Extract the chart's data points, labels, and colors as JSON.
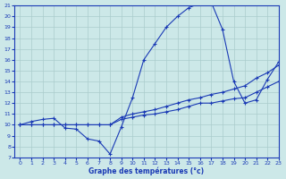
{
  "title": "Graphe des températures (°c)",
  "bg_color": "#cce8e8",
  "grid_color": "#aacccc",
  "line_color": "#1a3ab5",
  "xlim": [
    -0.5,
    23
  ],
  "ylim": [
    7,
    21
  ],
  "xticks": [
    0,
    1,
    2,
    3,
    4,
    5,
    6,
    7,
    8,
    9,
    10,
    11,
    12,
    13,
    14,
    15,
    16,
    17,
    18,
    19,
    20,
    21,
    22,
    23
  ],
  "yticks": [
    7,
    8,
    9,
    10,
    11,
    12,
    13,
    14,
    15,
    16,
    17,
    18,
    19,
    20,
    21
  ],
  "line1_x": [
    0,
    1,
    2,
    3,
    4,
    5,
    6,
    7,
    8,
    9,
    10,
    11,
    12,
    13,
    14,
    15,
    16,
    17,
    18,
    19,
    20,
    21,
    22,
    23
  ],
  "line1_y": [
    10,
    10.3,
    10.5,
    10.6,
    9.7,
    9.6,
    8.7,
    8.5,
    7.3,
    9.8,
    12.5,
    16,
    17.5,
    19,
    20,
    20.8,
    21.2,
    21.3,
    18.8,
    14.0,
    12.0,
    12.3,
    14.2,
    15.8
  ],
  "line2_x": [
    0,
    1,
    2,
    3,
    4,
    5,
    6,
    7,
    8,
    9,
    10,
    11,
    12,
    13,
    14,
    15,
    16,
    17,
    18,
    19,
    20,
    21,
    22,
    23
  ],
  "line2_y": [
    10,
    10,
    10,
    10,
    10,
    10,
    10,
    10,
    10,
    10.5,
    10.7,
    10.9,
    11.0,
    11.2,
    11.4,
    11.7,
    12.0,
    12.0,
    12.2,
    12.4,
    12.5,
    13.0,
    13.5,
    14.0
  ],
  "line3_x": [
    0,
    1,
    2,
    3,
    4,
    5,
    6,
    7,
    8,
    9,
    10,
    11,
    12,
    13,
    14,
    15,
    16,
    17,
    18,
    19,
    20,
    21,
    22,
    23
  ],
  "line3_y": [
    10,
    10,
    10,
    10,
    10,
    10,
    10,
    10,
    10,
    10.7,
    11.0,
    11.2,
    11.4,
    11.7,
    12.0,
    12.3,
    12.5,
    12.8,
    13.0,
    13.3,
    13.6,
    14.3,
    14.8,
    15.5
  ]
}
